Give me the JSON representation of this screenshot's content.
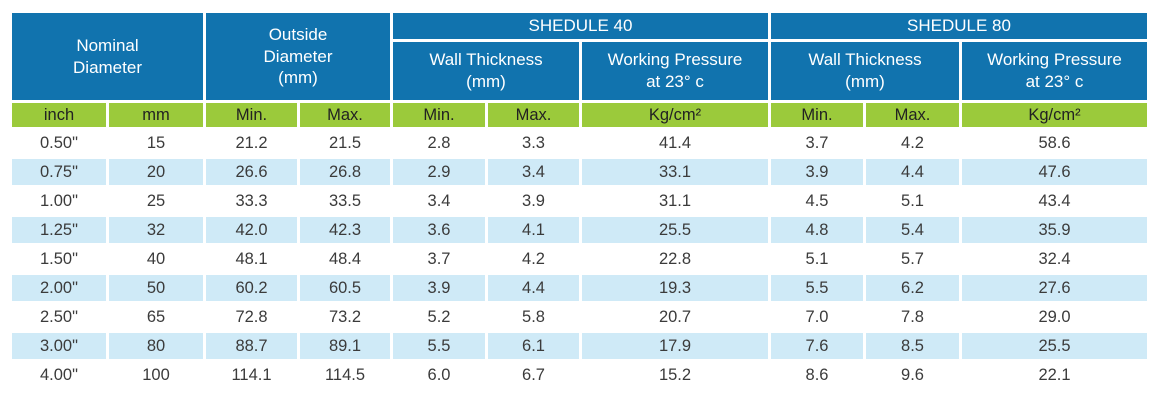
{
  "chart_data": {
    "type": "table",
    "header": {
      "nominal_diameter": "Nominal\nDiameter",
      "outside_diameter": "Outside\nDiameter\n(mm)",
      "schedule40": "SHEDULE 40",
      "schedule80": "SHEDULE 80",
      "wall_thickness": "Wall Thickness\n(mm)",
      "working_pressure": "Working Pressure\nat 23° c",
      "sub": [
        "inch",
        "mm",
        "Min.",
        "Max.",
        "Min.",
        "Max.",
        "Kg/cm²",
        "Min.",
        "Max.",
        "Kg/cm²"
      ]
    },
    "rows": [
      [
        "0.50\"",
        "15",
        "21.2",
        "21.5",
        "2.8",
        "3.3",
        "41.4",
        "3.7",
        "4.2",
        "58.6"
      ],
      [
        "0.75\"",
        "20",
        "26.6",
        "26.8",
        "2.9",
        "3.4",
        "33.1",
        "3.9",
        "4.4",
        "47.6"
      ],
      [
        "1.00\"",
        "25",
        "33.3",
        "33.5",
        "3.4",
        "3.9",
        "31.1",
        "4.5",
        "5.1",
        "43.4"
      ],
      [
        "1.25\"",
        "32",
        "42.0",
        "42.3",
        "3.6",
        "4.1",
        "25.5",
        "4.8",
        "5.4",
        "35.9"
      ],
      [
        "1.50\"",
        "40",
        "48.1",
        "48.4",
        "3.7",
        "4.2",
        "22.8",
        "5.1",
        "5.7",
        "32.4"
      ],
      [
        "2.00\"",
        "50",
        "60.2",
        "60.5",
        "3.9",
        "4.4",
        "19.3",
        "5.5",
        "6.2",
        "27.6"
      ],
      [
        "2.50\"",
        "65",
        "72.8",
        "73.2",
        "5.2",
        "5.8",
        "20.7",
        "7.0",
        "7.8",
        "29.0"
      ],
      [
        "3.00\"",
        "80",
        "88.7",
        "89.1",
        "5.5",
        "6.1",
        "17.9",
        "7.6",
        "8.5",
        "25.5"
      ],
      [
        "4.00\"",
        "100",
        "114.1",
        "114.5",
        "6.0",
        "6.7",
        "15.2",
        "8.6",
        "9.6",
        "22.1"
      ]
    ],
    "colors": {
      "header_blue": "#1173ae",
      "subheader_green": "#9bca3b",
      "row_alt_blue": "#cfeaf7"
    }
  }
}
